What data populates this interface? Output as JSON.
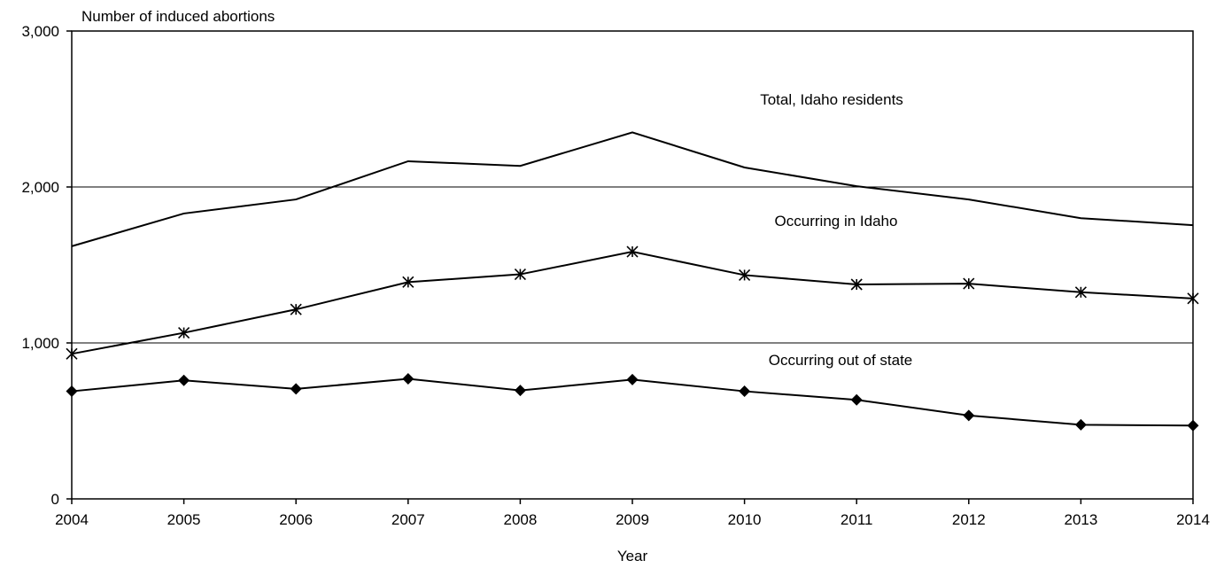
{
  "chart_data": {
    "type": "line",
    "ylabel": "Number of induced abortions",
    "xlabel": "Year",
    "x": [
      "2004",
      "2005",
      "2006",
      "2007",
      "2008",
      "2009",
      "2010",
      "2011",
      "2012",
      "2013",
      "2014"
    ],
    "ylim": [
      0,
      3000
    ],
    "yticks": [
      "0",
      "1,000",
      "2,000",
      "3,000"
    ],
    "ytick_values": [
      0,
      1000,
      2000,
      3000
    ],
    "grid": "horizontal at 1,000 and 2,000",
    "series": [
      {
        "name": "Total, Idaho residents",
        "marker": "none",
        "values": [
          1620,
          1830,
          1920,
          2165,
          2135,
          2350,
          2125,
          2005,
          1920,
          1800,
          1755
        ]
      },
      {
        "name": "Occurring in Idaho",
        "marker": "asterisk",
        "values": [
          930,
          1065,
          1215,
          1390,
          1440,
          1585,
          1435,
          1375,
          1380,
          1325,
          1285
        ]
      },
      {
        "name": "Occurring out of state",
        "marker": "diamond",
        "values": [
          690,
          760,
          705,
          770,
          695,
          765,
          690,
          635,
          535,
          475,
          470
        ]
      }
    ]
  }
}
